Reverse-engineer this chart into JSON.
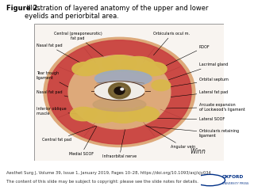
{
  "title_bold": "Figure 2.",
  "title_normal": " Illustration of layered anatomy of the upper and lower\neyelids and periorbital area.",
  "title_fontsize": 6.0,
  "footer_line1": "Aesthet Surg J, Volume 39, Issue 1, January 2019, Pages 10–28, https://doi.org/10.1093/asj/sjy034",
  "footer_line2": "The content of this slide may be subject to copyright: please see the slide notes for details.",
  "footer_fontsize": 3.8,
  "bg_color": "#ffffff",
  "label_fontsize": 3.5,
  "oxford_logo_color": "#003087",
  "box_face": "#f7f2ed",
  "skin_color": "#dda97a",
  "red_muscle": "#c94040",
  "fat_yellow": "#d9b84a",
  "blue_grey": "#9aaac4",
  "eye_white": "#f0ede8",
  "iris_color": "#7a6535",
  "pupil_color": "#1a100a"
}
